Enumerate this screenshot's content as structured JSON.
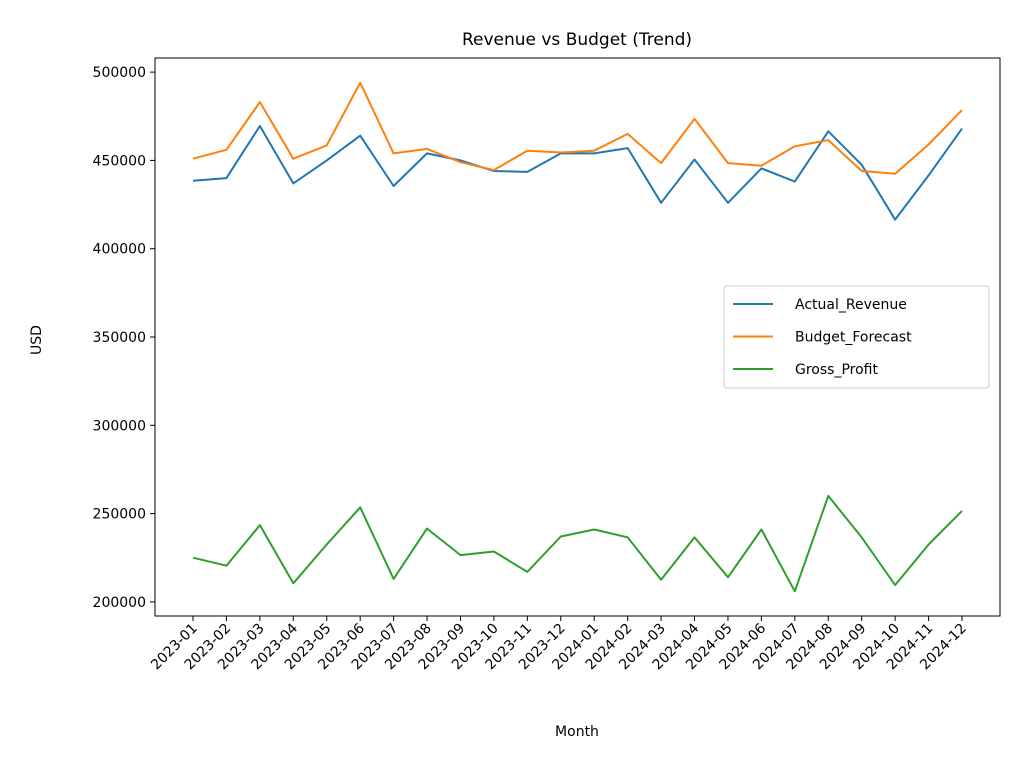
{
  "chart_data": {
    "type": "line",
    "title": "Revenue vs Budget (Trend)",
    "xlabel": "Month",
    "ylabel": "USD",
    "ylim": [
      192000,
      508000
    ],
    "yticks": [
      200000,
      250000,
      300000,
      350000,
      400000,
      450000,
      500000
    ],
    "grid": false,
    "legend_position": "center-right",
    "categories": [
      "2023-01",
      "2023-02",
      "2023-03",
      "2023-04",
      "2023-05",
      "2023-06",
      "2023-07",
      "2023-08",
      "2023-09",
      "2023-10",
      "2023-11",
      "2023-12",
      "2024-01",
      "2024-02",
      "2024-03",
      "2024-04",
      "2024-05",
      "2024-06",
      "2024-07",
      "2024-08",
      "2024-09",
      "2024-10",
      "2024-11",
      "2024-12"
    ],
    "series": [
      {
        "name": "Actual_Revenue",
        "color": "#1f77b4",
        "values": [
          438500,
          440000,
          469500,
          437000,
          450000,
          464000,
          435500,
          454000,
          450000,
          444000,
          443500,
          454000,
          454000,
          457000,
          426000,
          450500,
          426000,
          445500,
          438000,
          466500,
          447500,
          416500,
          441500,
          468000
        ]
      },
      {
        "name": "Budget_Forecast",
        "color": "#ff7f0e",
        "values": [
          451000,
          456000,
          483000,
          451000,
          458500,
          494000,
          454000,
          456500,
          449000,
          444500,
          455500,
          454500,
          455500,
          465000,
          448500,
          473500,
          448500,
          447000,
          458000,
          461500,
          444000,
          442500,
          459000,
          478500
        ]
      },
      {
        "name": "Gross_Profit",
        "color": "#2ca02c",
        "values": [
          225000,
          220500,
          243500,
          210500,
          232500,
          253500,
          213000,
          241500,
          226500,
          228500,
          217000,
          237000,
          241000,
          236500,
          212500,
          236500,
          214000,
          241000,
          206000,
          260000,
          236500,
          209500,
          232500,
          251500
        ]
      }
    ]
  }
}
